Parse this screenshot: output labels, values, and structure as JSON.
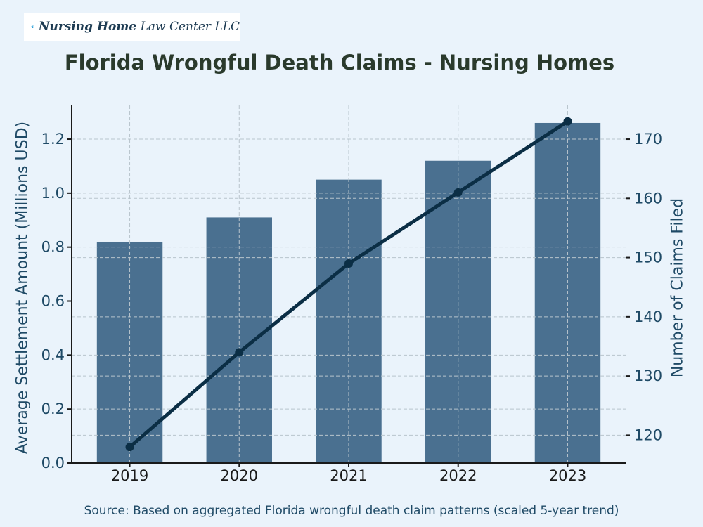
{
  "logo": {
    "text_bold": "Nursing Home",
    "text_regular": "Law Center LLC"
  },
  "title": "Florida Wrongful Death Claims - Nursing Homes",
  "source": "Source: Based on aggregated Florida wrongful death claim patterns (scaled 5-year trend)",
  "colors": {
    "background": "#eaf3fb",
    "bar": "#4a7090",
    "line": "#0b2e45",
    "axis_text": "#1f4a66",
    "title": "#2a3a2c"
  },
  "chart_data": {
    "type": "bar+line",
    "title": "Florida Wrongful Death Claims - Nursing Homes",
    "categories": [
      "2019",
      "2020",
      "2021",
      "2022",
      "2023"
    ],
    "series": [
      {
        "type": "bar",
        "axis": "left",
        "values": [
          0.82,
          0.91,
          1.05,
          1.12,
          1.26
        ]
      },
      {
        "type": "line",
        "axis": "right",
        "values": [
          118,
          134,
          149,
          161,
          173
        ]
      }
    ],
    "ylabel_left": "Average Settlement Amount (Millions USD)",
    "ylabel_right": "Number of Claims Filed",
    "ylim_left": [
      0,
      1.325
    ],
    "ylim_right": [
      115.3,
      175.7
    ],
    "yticks_left": [
      "0.0",
      "0.2",
      "0.4",
      "0.6",
      "0.8",
      "1.0",
      "1.2"
    ],
    "yticks_right": [
      "120",
      "130",
      "140",
      "150",
      "160",
      "170"
    ],
    "grid": true
  }
}
